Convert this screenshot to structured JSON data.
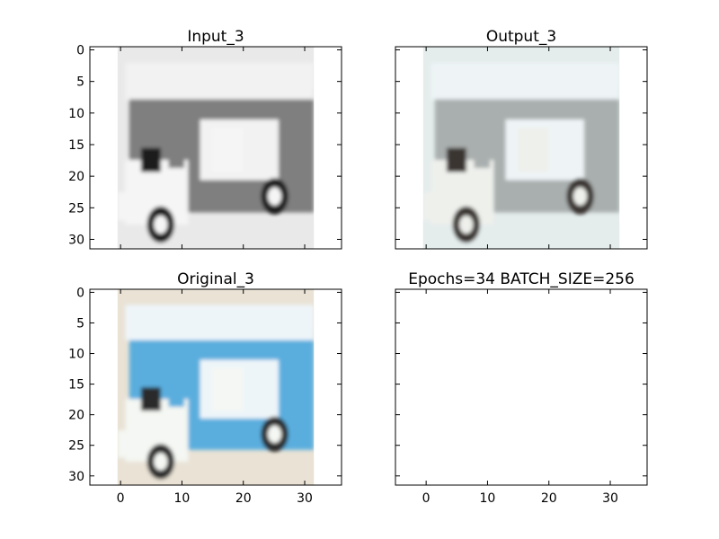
{
  "chart_data": [
    {
      "type": "image",
      "title": "Input_3",
      "xlim": [
        -5,
        36
      ],
      "ylim": [
        31.5,
        -0.5
      ],
      "xticks": [
        0,
        10,
        20,
        30
      ],
      "yticks": [
        0,
        5,
        10,
        15,
        20,
        25,
        30
      ],
      "show_xticklabels": false,
      "show_yticklabels": true,
      "content": "grayscale truck",
      "colors": {
        "body": "#7f7f7f",
        "roof": "#f2f2f2",
        "cab": "#f5f5f5",
        "wheel": "#1a1a1a",
        "background": "#e9e9e9"
      }
    },
    {
      "type": "image",
      "title": "Output_3",
      "xlim": [
        -5,
        36
      ],
      "ylim": [
        31.5,
        -0.5
      ],
      "xticks": [
        0,
        10,
        20,
        30
      ],
      "yticks": [
        0,
        5,
        10,
        15,
        20,
        25,
        30
      ],
      "show_xticklabels": false,
      "show_yticklabels": false,
      "content": "colorized truck",
      "colors": {
        "body": "#a9afae",
        "roof": "#eef4f6",
        "cab": "#eef0ec",
        "wheel": "#3a3433",
        "background": "#e4ecec"
      }
    },
    {
      "type": "image",
      "title": "Original_3",
      "xlim": [
        -5,
        36
      ],
      "ylim": [
        31.5,
        -0.5
      ],
      "xticks": [
        0,
        10,
        20,
        30
      ],
      "yticks": [
        0,
        5,
        10,
        15,
        20,
        25,
        30
      ],
      "show_xticklabels": true,
      "show_yticklabels": true,
      "content": "blue truck",
      "colors": {
        "body": "#5aaede",
        "roof": "#eef5f9",
        "cab": "#f4f7f3",
        "wheel": "#2a2a2a",
        "background": "#e9e2d5"
      }
    },
    {
      "type": "empty",
      "title": "Epochs=34 BATCH_SIZE=256",
      "xlim": [
        -5,
        36
      ],
      "ylim": [
        31.5,
        -0.5
      ],
      "xticks": [
        0,
        10,
        20,
        30
      ],
      "yticks": [
        0,
        5,
        10,
        15,
        20,
        25,
        30
      ],
      "show_xticklabels": true,
      "show_yticklabels": false
    }
  ]
}
